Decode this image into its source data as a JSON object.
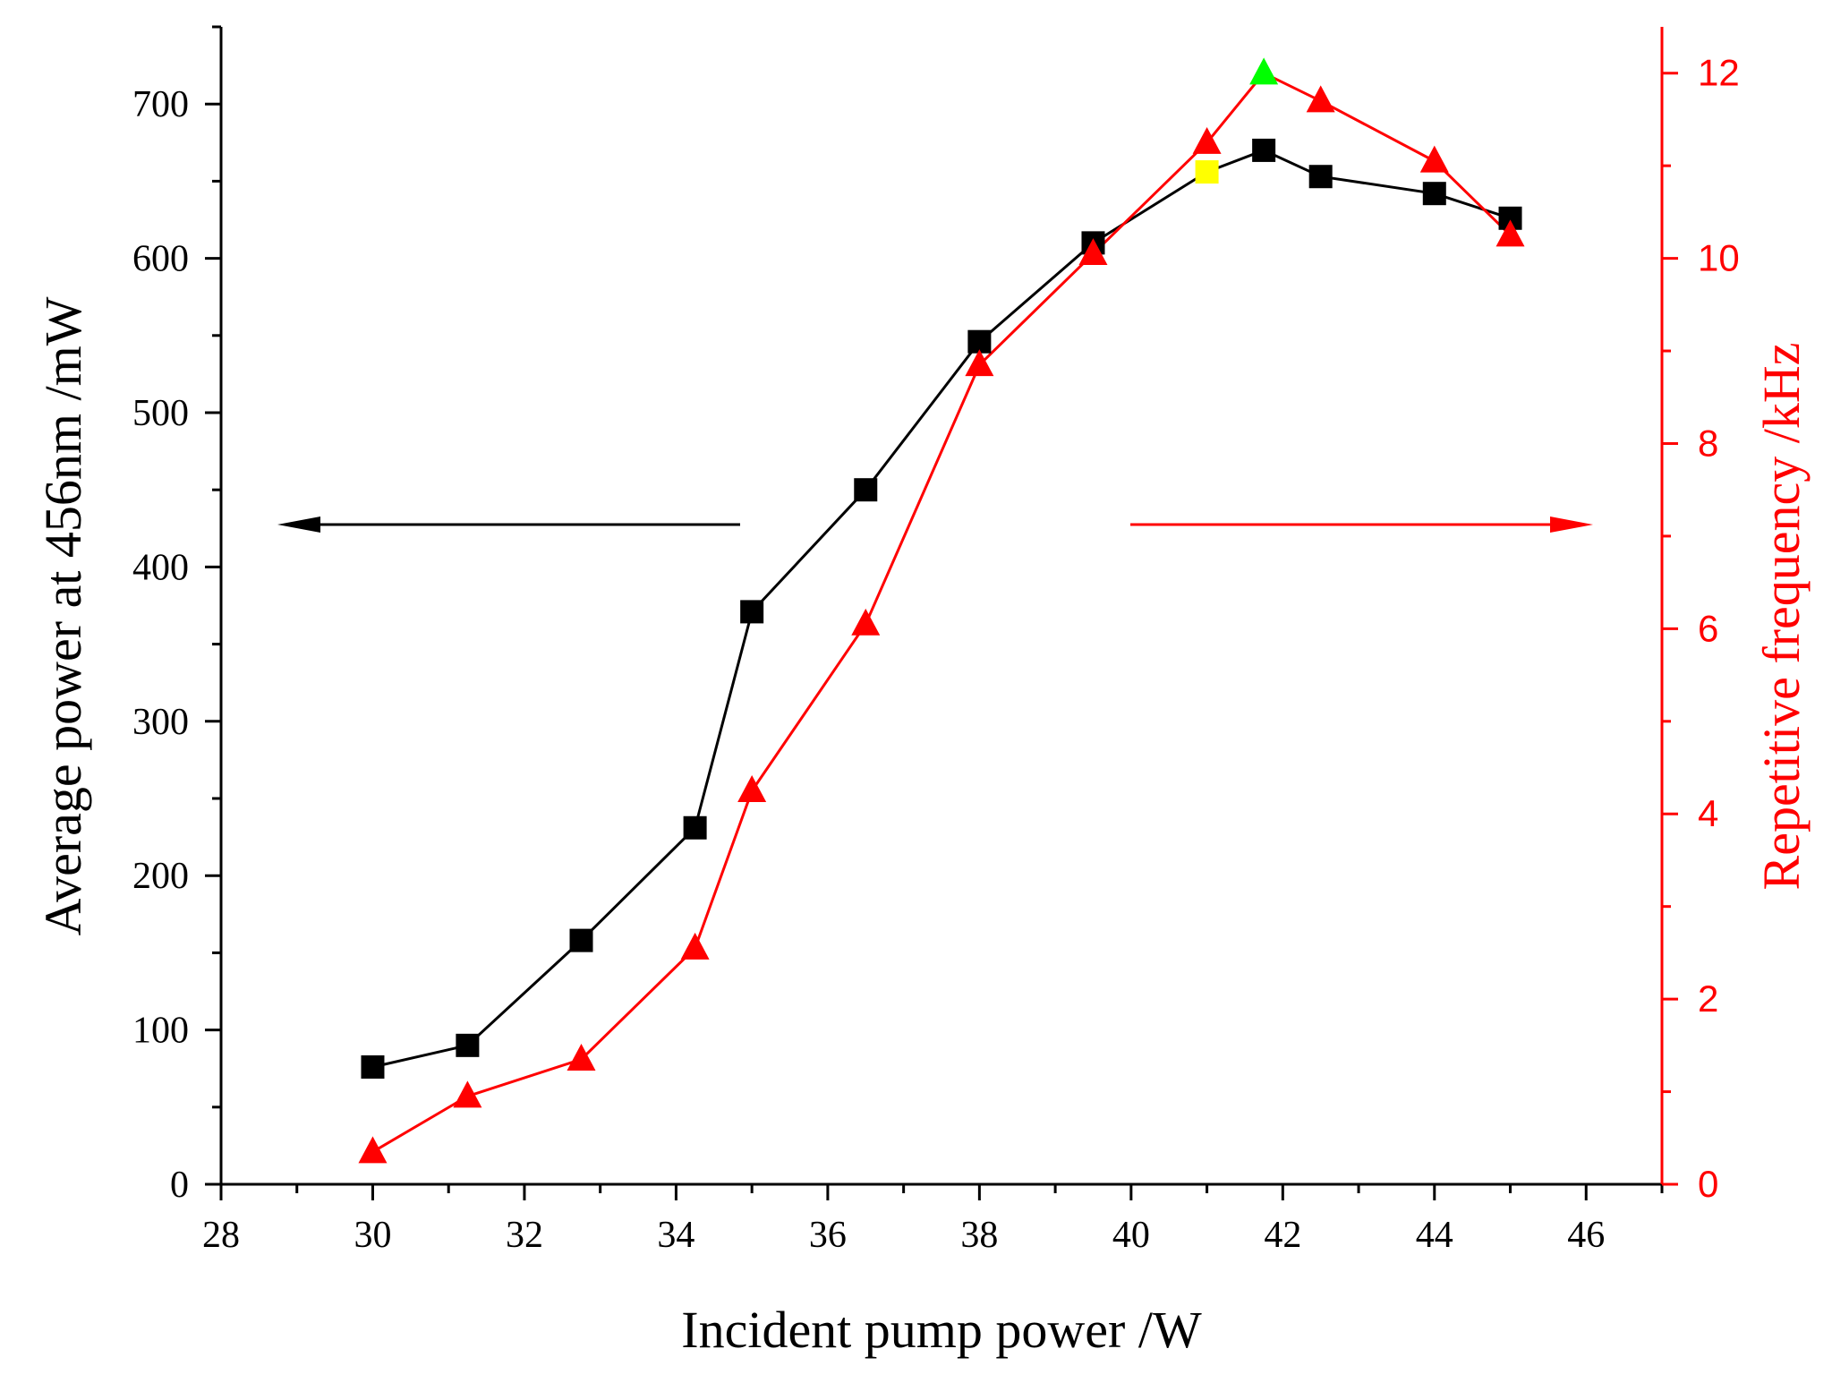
{
  "chart_data": {
    "type": "line",
    "xlabel": "Incident pump power /W",
    "ylabel_left": "Average power at 456nm /mW",
    "ylabel_right": "Repetitive frequency /kHz",
    "xlim": [
      28,
      47
    ],
    "x_ticks": [
      28,
      30,
      32,
      34,
      36,
      38,
      40,
      42,
      44,
      46
    ],
    "ylim_left": [
      0,
      750
    ],
    "y_ticks_left": [
      0,
      100,
      200,
      300,
      400,
      500,
      600,
      700
    ],
    "ylim_right": [
      0,
      12.5
    ],
    "y_ticks_right": [
      0,
      2,
      4,
      6,
      8,
      10,
      12
    ],
    "series": [
      {
        "name": "Average power at 456nm",
        "axis": "left",
        "marker": "square",
        "color": "#000000",
        "highlight_color": "#ffff00",
        "highlight_index": 8,
        "x": [
          30,
          31.25,
          32.75,
          34.25,
          35,
          36.5,
          38,
          39.5,
          41,
          41.75,
          42.5,
          44,
          45
        ],
        "values": [
          76,
          90,
          158,
          231,
          371,
          450,
          546,
          610,
          656,
          670,
          653,
          642,
          626
        ]
      },
      {
        "name": "Repetitive frequency",
        "axis": "right",
        "marker": "triangle",
        "color": "#ff0000",
        "highlight_color": "#00ff00",
        "highlight_index": 9,
        "x": [
          30,
          31.25,
          32.75,
          34.25,
          35,
          36.5,
          38,
          39.5,
          41,
          41.75,
          42.5,
          44,
          45
        ],
        "values": [
          0.35,
          0.95,
          1.35,
          2.55,
          4.25,
          6.05,
          8.85,
          10.05,
          11.25,
          12.0,
          11.7,
          11.05,
          10.25
        ]
      }
    ],
    "annotations": [
      {
        "type": "arrow",
        "direction": "left",
        "color": "#000000",
        "meaning": "black series uses left axis"
      },
      {
        "type": "arrow",
        "direction": "right",
        "color": "#ff0000",
        "meaning": "red series uses right axis"
      }
    ]
  }
}
